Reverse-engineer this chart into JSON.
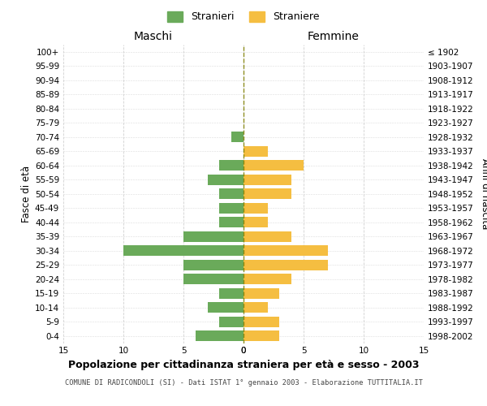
{
  "age_groups": [
    "100+",
    "95-99",
    "90-94",
    "85-89",
    "80-84",
    "75-79",
    "70-74",
    "65-69",
    "60-64",
    "55-59",
    "50-54",
    "45-49",
    "40-44",
    "35-39",
    "30-34",
    "25-29",
    "20-24",
    "15-19",
    "10-14",
    "5-9",
    "0-4"
  ],
  "birth_years": [
    "≤ 1902",
    "1903-1907",
    "1908-1912",
    "1913-1917",
    "1918-1922",
    "1923-1927",
    "1928-1932",
    "1933-1937",
    "1938-1942",
    "1943-1947",
    "1948-1952",
    "1953-1957",
    "1958-1962",
    "1963-1967",
    "1968-1972",
    "1973-1977",
    "1978-1982",
    "1983-1987",
    "1988-1992",
    "1993-1997",
    "1998-2002"
  ],
  "maschi": [
    0,
    0,
    0,
    0,
    0,
    0,
    1,
    0,
    2,
    3,
    2,
    2,
    2,
    5,
    10,
    5,
    5,
    2,
    3,
    2,
    4
  ],
  "femmine": [
    0,
    0,
    0,
    0,
    0,
    0,
    0,
    2,
    5,
    4,
    4,
    2,
    2,
    4,
    7,
    7,
    4,
    3,
    2,
    3,
    3
  ],
  "color_maschi": "#6aaa5a",
  "color_femmine": "#f5be41",
  "title_bold": "Popolazione per cittadinanza straniera per età e sesso - 2003",
  "subtitle": "COMUNE DI RADICONDOLI (SI) - Dati ISTAT 1° gennaio 2003 - Elaborazione TUTTITALIA.IT",
  "xlabel_left": "Maschi",
  "xlabel_right": "Femmine",
  "ylabel_left": "Fasce di età",
  "ylabel_right": "Anni di nascita",
  "xmax": 15,
  "legend_stranieri": "Stranieri",
  "legend_straniere": "Straniere",
  "background_color": "#ffffff",
  "grid_color": "#cccccc",
  "center_line_color": "#808000"
}
